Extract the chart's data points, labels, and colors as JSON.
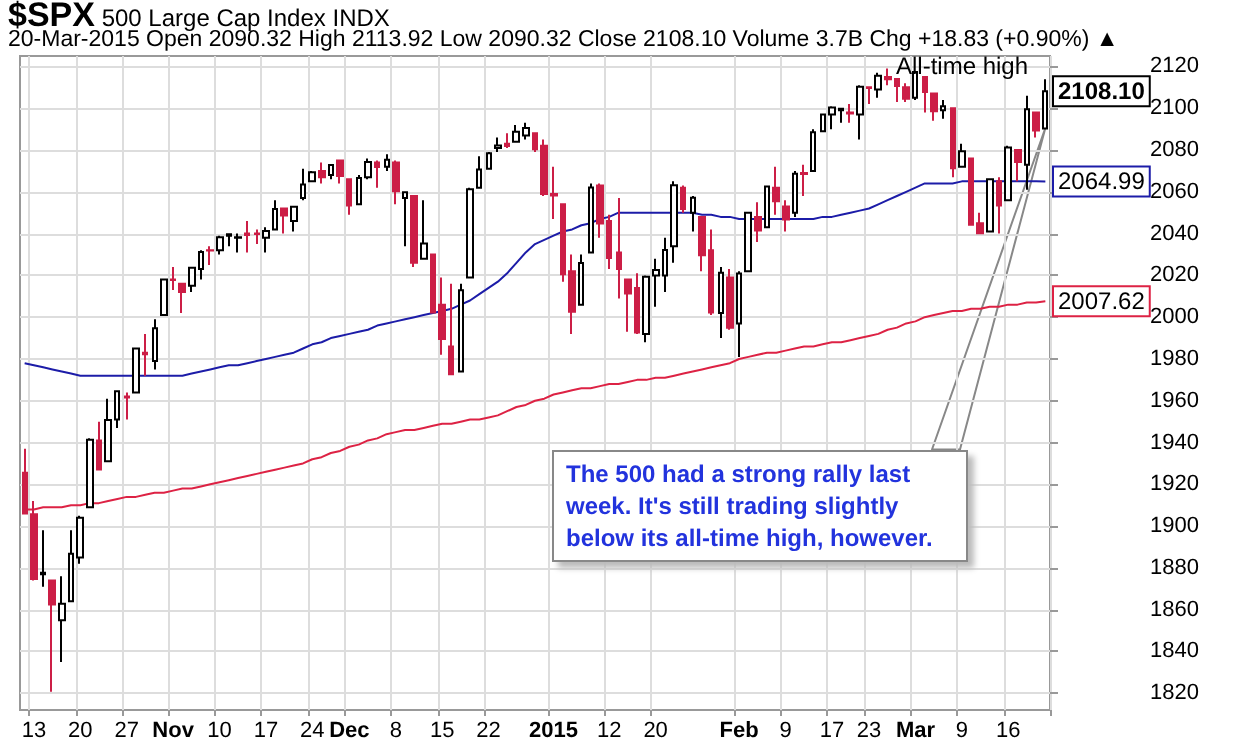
{
  "chart_data": {
    "type": "candlestick",
    "title": "$SPX",
    "subtitle": "500 Large Cap Index INDX",
    "annotations": [
      "20-Mar-2015  Open 2090.32  High 2113.92  Low 2090.32  Close 2108.10  Volume 3.7B  Chg +18.83 (+0.90%) ▲",
      "All-time high",
      "The 500 had a strong rally last week. It's still trading slightly below its all-time high, however."
    ],
    "categories": [
      null,
      "13",
      null,
      null,
      null,
      null,
      "20",
      null,
      null,
      null,
      null,
      "27",
      null,
      null,
      null,
      null,
      "Nov",
      null,
      null,
      null,
      null,
      "10",
      null,
      null,
      null,
      null,
      "17",
      null,
      null,
      null,
      null,
      "24",
      null,
      null,
      null,
      "Dec",
      null,
      null,
      null,
      null,
      "8",
      null,
      null,
      null,
      null,
      "15",
      null,
      null,
      null,
      null,
      "22",
      null,
      null,
      null,
      null,
      null,
      null,
      "2015",
      null,
      null,
      null,
      null,
      null,
      "12",
      null,
      null,
      null,
      null,
      "20",
      null,
      null,
      null,
      null,
      null,
      null,
      null,
      null,
      "Feb",
      null,
      null,
      null,
      null,
      "9",
      null,
      null,
      null,
      null,
      "17",
      null,
      null,
      null,
      "23",
      null,
      null,
      null,
      null,
      "Mar",
      null,
      null,
      null,
      null,
      "9",
      null,
      null,
      null,
      null,
      "16",
      null,
      null,
      null,
      null
    ],
    "ohlc": [
      [
        1925.6,
        1937,
        1906,
        1906.1
      ],
      [
        1905.7,
        1912,
        1874,
        1874.7
      ],
      [
        1877,
        1898,
        1871,
        1877.7
      ],
      [
        1874,
        1874,
        1820.7,
        1862.5
      ],
      [
        1855,
        1876,
        1835,
        1862.8
      ],
      [
        1864,
        1898,
        1864,
        1886.8
      ],
      [
        1885,
        1905,
        1882,
        1904
      ],
      [
        1909,
        1942,
        1909,
        1941.3
      ],
      [
        1941,
        1950,
        1927,
        1927.1
      ],
      [
        1931,
        1961,
        1931,
        1950.8
      ],
      [
        1951,
        1965,
        1947,
        1964.6
      ],
      [
        1962,
        1964,
        1951,
        1961.6
      ],
      [
        1964,
        1985,
        1964,
        1985
      ],
      [
        1983,
        1992,
        1972,
        1982.3
      ],
      [
        1979,
        1999,
        1975,
        1994.7
      ],
      [
        2001,
        2018,
        2001,
        2018
      ],
      [
        2018,
        2024,
        2013,
        2017.8
      ],
      [
        2016,
        2016,
        2002,
        2012.1
      ],
      [
        2015,
        2024,
        2012,
        2023.6
      ],
      [
        2023,
        2032,
        2018,
        2031.2
      ],
      [
        2032,
        2034,
        2025,
        2031.9
      ],
      [
        2032,
        2039,
        2030,
        2038.3
      ],
      [
        2039,
        2040,
        2034,
        2039.7
      ],
      [
        2038,
        2040,
        2031,
        2038.3
      ],
      [
        2040,
        2046,
        2031,
        2039.3
      ],
      [
        2040,
        2042,
        2035,
        2039.8
      ],
      [
        2038,
        2043,
        2031,
        2041.3
      ],
      [
        2042,
        2056,
        2042,
        2051.8
      ],
      [
        2052,
        2052,
        2040,
        2048.7
      ],
      [
        2046,
        2053,
        2041,
        2052.8
      ],
      [
        2057,
        2071,
        2056,
        2063.5
      ],
      [
        2065,
        2070,
        2065,
        2069.4
      ],
      [
        2070,
        2074,
        2064,
        2067
      ],
      [
        2068,
        2073,
        2066,
        2072.8
      ],
      [
        2075,
        2075,
        2064,
        2067.6
      ],
      [
        2066,
        2066,
        2049,
        2053.4
      ],
      [
        2054,
        2068,
        2054,
        2066.6
      ],
      [
        2067,
        2076,
        2066,
        2074.3
      ],
      [
        2074,
        2075,
        2062,
        2071.9
      ],
      [
        2072,
        2078,
        2070,
        2075.4
      ],
      [
        2074,
        2075,
        2054,
        2060.3
      ],
      [
        2057,
        2060,
        2034,
        2059.8
      ],
      [
        2058,
        2058,
        2024,
        2026.1
      ],
      [
        2028,
        2056,
        2028,
        2035.3
      ],
      [
        2030,
        2030,
        2002,
        2002.3
      ],
      [
        2006,
        2019,
        1982,
        1989.6
      ],
      [
        1986,
        2016,
        1972.6,
        1972.7
      ],
      [
        1974,
        2016,
        1974,
        2012.9
      ],
      [
        2019,
        2062,
        2019,
        2061.2
      ],
      [
        2062,
        2077,
        2062,
        2070.7
      ],
      [
        2071,
        2079,
        2071,
        2078.5
      ],
      [
        2081,
        2086,
        2079,
        2082.2
      ],
      [
        2083,
        2088,
        2081,
        2081.9
      ],
      [
        2084,
        2092,
        2084,
        2088.8
      ],
      [
        2087,
        2093,
        2085,
        2090.6
      ],
      [
        2088,
        2088,
        2079,
        2080.4
      ],
      [
        2082,
        2085,
        2058,
        2058.9
      ],
      [
        2059,
        2072,
        2047,
        2058.2
      ],
      [
        2054,
        2054,
        2017,
        2020.6
      ],
      [
        2022,
        2030,
        1992,
        2002.6
      ],
      [
        2006,
        2030,
        2006,
        2025.9
      ],
      [
        2031,
        2064,
        2031,
        2062.1
      ],
      [
        2063,
        2064,
        2038,
        2044.8
      ],
      [
        2046,
        2049,
        2023,
        2028.3
      ],
      [
        2031,
        2057,
        2009,
        2023
      ],
      [
        2018,
        2018,
        1993,
        2011.3
      ],
      [
        2014,
        2021,
        1992,
        1992.7
      ],
      [
        1992,
        2020,
        1988,
        2019.4
      ],
      [
        2020,
        2028,
        2005,
        2022.6
      ],
      [
        2020,
        2038,
        2012,
        2032.1
      ],
      [
        2034,
        2065,
        2026,
        2063.2
      ],
      [
        2062,
        2063,
        2050,
        2051.8
      ],
      [
        2050,
        2058,
        2041,
        2057.1
      ],
      [
        2048,
        2048,
        2022,
        2029.6
      ],
      [
        2032,
        2042,
        2001,
        2002.2
      ],
      [
        2002,
        2024,
        1990,
        2021.3
      ],
      [
        2019,
        2023,
        1994,
        1995
      ],
      [
        1997,
        2022,
        1981,
        2020.9
      ],
      [
        2022,
        2050,
        2022,
        2050
      ],
      [
        2048,
        2055,
        2036,
        2041.5
      ],
      [
        2043,
        2063,
        2043,
        2062.5
      ],
      [
        2062,
        2072,
        2049,
        2055.5
      ],
      [
        2053,
        2056,
        2041,
        2046.7
      ],
      [
        2050,
        2070,
        2048,
        2068.6
      ],
      [
        2069,
        2073,
        2058,
        2068.5
      ],
      [
        2070,
        2090,
        2070,
        2088.5
      ],
      [
        2089,
        2097,
        2089,
        2097
      ],
      [
        2097,
        2101,
        2090,
        2100.3
      ],
      [
        2099,
        2100,
        2093,
        2099.7
      ],
      [
        2098,
        2102,
        2093,
        2097.5
      ],
      [
        2097,
        2111,
        2085,
        2110.3
      ],
      [
        2110,
        2110,
        2102,
        2109.7
      ],
      [
        2109,
        2117,
        2105,
        2115.5
      ],
      [
        2115,
        2119,
        2111,
        2113.9
      ],
      [
        2114,
        2114,
        2103,
        2110.7
      ],
      [
        2110,
        2112,
        2103,
        2104.5
      ],
      [
        2105,
        2117.5,
        2104,
        2117.4
      ],
      [
        2115,
        2115,
        2098,
        2107.8
      ],
      [
        2107,
        2107,
        2094,
        2098.5
      ],
      [
        2099,
        2104,
        2095,
        2101
      ],
      [
        2100,
        2100,
        2067,
        2071.3
      ],
      [
        2072,
        2083,
        2072,
        2079.4
      ],
      [
        2076,
        2076,
        2044,
        2044.2
      ],
      [
        2045,
        2050,
        2040,
        2040.2
      ],
      [
        2041,
        2066,
        2041,
        2066
      ],
      [
        2065,
        2067,
        2040,
        2053.4
      ],
      [
        2056,
        2082,
        2056,
        2081.2
      ],
      [
        2080,
        2080,
        2065,
        2074.3
      ],
      [
        2073,
        2106,
        2061,
        2099.5
      ],
      [
        2098,
        2098,
        2086,
        2089.3
      ],
      [
        2090.32,
        2113.92,
        2090.32,
        2108.1
      ]
    ],
    "colors": [
      "#cc1e46",
      "#cc1e46",
      "#000000",
      "#cc1e46",
      "#000000",
      "#000000",
      "#000000",
      "#000000",
      "#cc1e46",
      "#000000",
      "#000000",
      "#cc1e46",
      "#000000",
      "#cc1e46",
      "#000000",
      "#000000",
      "#cc1e46",
      "#cc1e46",
      "#000000",
      "#000000",
      "#cc1e46",
      "#000000",
      "#000000",
      "#000000",
      "#cc1e46",
      "#cc1e46",
      "#000000",
      "#000000",
      "#cc1e46",
      "#000000",
      "#000000",
      "#000000",
      "#cc1e46",
      "#000000",
      "#cc1e46",
      "#cc1e46",
      "#000000",
      "#000000",
      "#cc1e46",
      "#000000",
      "#cc1e46",
      "#000000",
      "#cc1e46",
      "#000000",
      "#cc1e46",
      "#cc1e46",
      "#cc1e46",
      "#000000",
      "#000000",
      "#000000",
      "#000000",
      "#000000",
      "#cc1e46",
      "#000000",
      "#000000",
      "#cc1e46",
      "#cc1e46",
      "#cc1e46",
      "#cc1e46",
      "#cc1e46",
      "#000000",
      "#000000",
      "#cc1e46",
      "#cc1e46",
      "#cc1e46",
      "#cc1e46",
      "#cc1e46",
      "#000000",
      "#000000",
      "#000000",
      "#000000",
      "#cc1e46",
      "#000000",
      "#cc1e46",
      "#cc1e46",
      "#000000",
      "#cc1e46",
      "#000000",
      "#000000",
      "#cc1e46",
      "#000000",
      "#cc1e46",
      "#cc1e46",
      "#000000",
      "#cc1e46",
      "#000000",
      "#000000",
      "#000000",
      "#000000",
      "#cc1e46",
      "#000000",
      "#cc1e46",
      "#000000",
      "#cc1e46",
      "#cc1e46",
      "#cc1e46",
      "#000000",
      "#cc1e46",
      "#cc1e46",
      "#000000",
      "#cc1e46",
      "#000000",
      "#cc1e46",
      "#cc1e46",
      "#000000",
      "#cc1e46",
      "#000000",
      "#cc1e46",
      "#000000",
      "#cc1e46",
      "#000000"
    ],
    "value_labels": [
      null,
      null,
      null,
      null,
      null,
      null,
      null,
      null,
      null,
      null,
      null,
      null,
      null,
      null,
      null,
      null,
      null,
      null,
      null,
      null,
      null,
      null,
      null,
      null,
      null,
      null,
      null,
      null,
      null,
      null,
      null,
      null,
      null,
      null,
      null,
      null,
      null,
      null,
      null,
      null,
      null,
      null,
      null,
      null,
      null,
      null,
      null,
      null,
      null,
      null,
      null,
      null,
      null,
      null,
      null,
      null,
      null,
      null,
      null,
      null,
      null,
      null,
      null,
      null,
      null,
      null,
      null,
      null,
      null,
      null,
      null,
      null,
      null,
      null,
      null,
      null,
      null,
      null,
      null,
      null,
      null,
      null,
      null,
      null,
      null,
      null,
      null,
      null,
      null,
      null,
      null,
      null,
      null,
      null,
      null,
      null,
      null,
      null,
      null,
      null,
      null,
      null,
      null,
      null,
      null,
      null,
      null,
      null,
      null,
      null,
      "2108.10"
    ],
    "series": [
      {
        "type": "line",
        "color": "#1c1ca8",
        "values": [
          1978,
          1977,
          1976,
          1975,
          1974,
          1973,
          1972,
          1972,
          1972,
          1972,
          1972,
          1972,
          1972,
          1972,
          1972,
          1972,
          1972,
          1972,
          1973,
          1974,
          1975,
          1976,
          1977,
          1977,
          1978,
          1979,
          1980,
          1981,
          1982,
          1983,
          1985,
          1987,
          1988,
          1990,
          1991,
          1992,
          1993,
          1994,
          1996,
          1997,
          1998,
          1999,
          2000,
          2001,
          2002,
          2003,
          2004,
          2006,
          2008,
          2011,
          2014,
          2017,
          2021,
          2026,
          2031,
          2035,
          2037,
          2039,
          2041,
          2042,
          2044,
          2045,
          2047,
          2048,
          2050,
          2050,
          2050,
          2050,
          2050,
          2050,
          2050,
          2050,
          2050,
          2049,
          2049,
          2048,
          2048,
          2047,
          2047,
          2047,
          2047,
          2047,
          2047,
          2047,
          2047,
          2047,
          2048,
          2048,
          2049,
          2050,
          2051,
          2052,
          2054,
          2056,
          2058,
          2060,
          2062,
          2064,
          2064,
          2064,
          2064,
          2065,
          2065,
          2065,
          2065,
          2065,
          2065,
          2065,
          2065,
          2065,
          2064.99
        ],
        "value_labels": [
          null,
          null,
          null,
          null,
          null,
          null,
          null,
          null,
          null,
          null,
          null,
          null,
          null,
          null,
          null,
          null,
          null,
          null,
          null,
          null,
          null,
          null,
          null,
          null,
          null,
          null,
          null,
          null,
          null,
          null,
          null,
          null,
          null,
          null,
          null,
          null,
          null,
          null,
          null,
          null,
          null,
          null,
          null,
          null,
          null,
          null,
          null,
          null,
          null,
          null,
          null,
          null,
          null,
          null,
          null,
          null,
          null,
          null,
          null,
          null,
          null,
          null,
          null,
          null,
          null,
          null,
          null,
          null,
          null,
          null,
          null,
          null,
          null,
          null,
          null,
          null,
          null,
          null,
          null,
          null,
          null,
          null,
          null,
          null,
          null,
          null,
          null,
          null,
          null,
          null,
          null,
          null,
          null,
          null,
          null,
          null,
          null,
          null,
          null,
          null,
          null,
          null,
          null,
          null,
          null,
          null,
          null,
          null,
          null,
          null,
          "2064.99"
        ]
      },
      {
        "type": "line",
        "color": "#dd2244",
        "values": [
          1908,
          1908,
          1909,
          1909,
          1909,
          1910,
          1910,
          1911,
          1911,
          1912,
          1913,
          1914,
          1914,
          1915,
          1916,
          1916,
          1917,
          1918,
          1918,
          1919,
          1920,
          1921,
          1922,
          1923,
          1924,
          1925,
          1926,
          1927,
          1928,
          1929,
          1930,
          1932,
          1933,
          1935,
          1936,
          1938,
          1939,
          1941,
          1942,
          1944,
          1945,
          1946,
          1946,
          1947,
          1948,
          1949,
          1949,
          1950,
          1951,
          1951,
          1952,
          1953,
          1955,
          1957,
          1958,
          1960,
          1961,
          1963,
          1964,
          1965,
          1966,
          1966,
          1967,
          1968,
          1968,
          1969,
          1970,
          1970,
          1971,
          1971,
          1972,
          1973,
          1974,
          1975,
          1976,
          1977,
          1978,
          1980,
          1981,
          1982,
          1983,
          1983,
          1984,
          1985,
          1986,
          1986,
          1987,
          1988,
          1988,
          1989,
          1990,
          1991,
          1992,
          1994,
          1995,
          1997,
          1998,
          2000,
          2001,
          2002,
          2003,
          2003,
          2004,
          2004,
          2005,
          2005,
          2006,
          2006,
          2007,
          2007,
          2007.62
        ],
        "value_labels": [
          null,
          null,
          null,
          null,
          null,
          null,
          null,
          null,
          null,
          null,
          null,
          null,
          null,
          null,
          null,
          null,
          null,
          null,
          null,
          null,
          null,
          null,
          null,
          null,
          null,
          null,
          null,
          null,
          null,
          null,
          null,
          null,
          null,
          null,
          null,
          null,
          null,
          null,
          null,
          null,
          null,
          null,
          null,
          null,
          null,
          null,
          null,
          null,
          null,
          null,
          null,
          null,
          null,
          null,
          null,
          null,
          null,
          null,
          null,
          null,
          null,
          null,
          null,
          null,
          null,
          null,
          null,
          null,
          null,
          null,
          null,
          null,
          null,
          null,
          null,
          null,
          null,
          null,
          null,
          null,
          null,
          null,
          null,
          null,
          null,
          null,
          null,
          null,
          null,
          null,
          null,
          null,
          null,
          null,
          null,
          null,
          null,
          null,
          null,
          null,
          null,
          null,
          null,
          null,
          null,
          null,
          null,
          null,
          null,
          null,
          "2007.62"
        ]
      }
    ],
    "ylim": [
      1812,
      2125
    ],
    "yticks": [
      1820,
      1840,
      1860,
      1880,
      1900,
      1920,
      1940,
      1960,
      1980,
      2000,
      2020,
      2040,
      2060,
      2080,
      2100,
      2120
    ],
    "grid": true
  }
}
